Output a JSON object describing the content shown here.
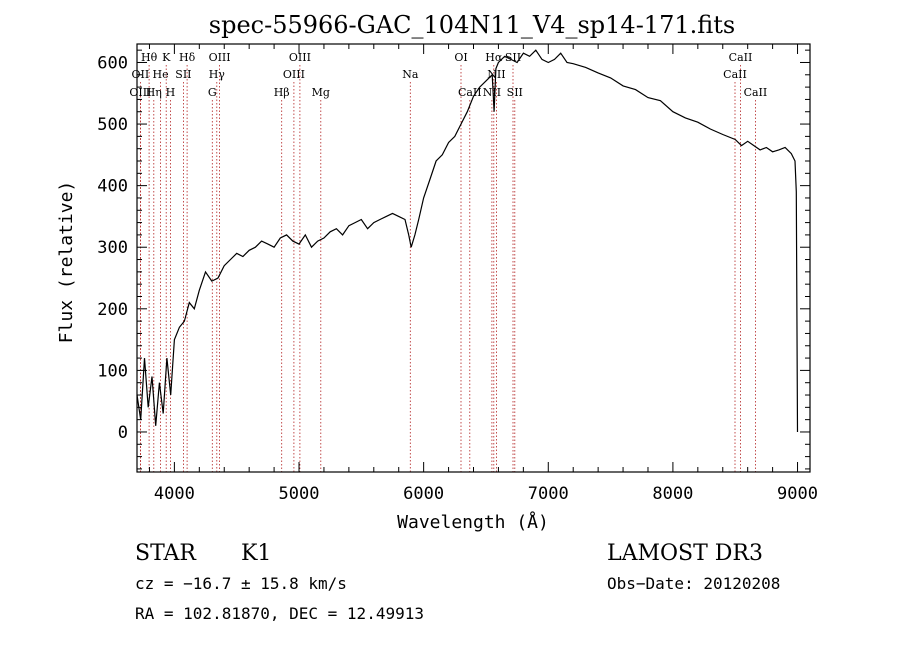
{
  "chart_data": {
    "type": "line",
    "title": "spec-55966-GAC_104N11_V4_sp14-171.fits",
    "xlabel": "Wavelength (Å)",
    "ylabel": "Flux (relative)",
    "xlim": [
      3700,
      9100
    ],
    "ylim": [
      -65,
      630
    ],
    "xticks": [
      4000,
      5000,
      6000,
      7000,
      8000,
      9000
    ],
    "yticks": [
      0,
      100,
      200,
      300,
      400,
      500,
      600
    ],
    "series": [
      {
        "name": "flux",
        "x": [
          3700,
          3730,
          3760,
          3790,
          3820,
          3850,
          3880,
          3910,
          3940,
          3970,
          4000,
          4040,
          4080,
          4120,
          4160,
          4200,
          4250,
          4300,
          4350,
          4400,
          4450,
          4500,
          4550,
          4600,
          4650,
          4700,
          4750,
          4800,
          4850,
          4900,
          4950,
          5000,
          5050,
          5100,
          5150,
          5200,
          5250,
          5300,
          5350,
          5400,
          5450,
          5500,
          5550,
          5600,
          5650,
          5700,
          5750,
          5800,
          5850,
          5880,
          5900,
          5930,
          5960,
          6000,
          6050,
          6100,
          6150,
          6200,
          6250,
          6300,
          6350,
          6400,
          6450,
          6500,
          6550,
          6565,
          6580,
          6600,
          6650,
          6700,
          6750,
          6800,
          6850,
          6900,
          6950,
          7000,
          7050,
          7100,
          7150,
          7200,
          7300,
          7400,
          7500,
          7600,
          7700,
          7800,
          7900,
          8000,
          8100,
          8200,
          8300,
          8400,
          8500,
          8550,
          8600,
          8650,
          8700,
          8750,
          8800,
          8850,
          8900,
          8950,
          8980,
          8990,
          9000
        ],
        "y": [
          60,
          20,
          120,
          40,
          90,
          10,
          80,
          30,
          120,
          60,
          150,
          170,
          180,
          210,
          200,
          230,
          260,
          245,
          250,
          270,
          280,
          290,
          285,
          295,
          300,
          310,
          305,
          300,
          315,
          320,
          310,
          305,
          320,
          300,
          310,
          315,
          325,
          330,
          320,
          335,
          340,
          345,
          330,
          340,
          345,
          350,
          355,
          350,
          345,
          320,
          300,
          320,
          345,
          380,
          410,
          440,
          450,
          470,
          480,
          500,
          520,
          545,
          560,
          570,
          580,
          520,
          590,
          600,
          610,
          605,
          600,
          615,
          610,
          620,
          605,
          600,
          605,
          615,
          600,
          598,
          592,
          583,
          575,
          562,
          556,
          543,
          538,
          520,
          510,
          503,
          492,
          483,
          475,
          465,
          472,
          465,
          458,
          462,
          455,
          458,
          462,
          452,
          440,
          390,
          0
        ]
      }
    ],
    "emission_lines": [
      {
        "label": "Hθ",
        "wavelength": 3797,
        "row": 0
      },
      {
        "label": "K",
        "wavelength": 3934,
        "row": 0
      },
      {
        "label": "Hδ",
        "wavelength": 4102,
        "row": 0
      },
      {
        "label": "OIII",
        "wavelength": 4363,
        "row": 0
      },
      {
        "label": "OIII",
        "wavelength": 5007,
        "row": 0
      },
      {
        "label": "OI",
        "wavelength": 6300,
        "row": 0
      },
      {
        "label": "Hα",
        "wavelength": 6563,
        "row": 0
      },
      {
        "label": "SII",
        "wavelength": 6717,
        "row": 0
      },
      {
        "label": "CaII",
        "wavelength": 8542,
        "row": 0
      },
      {
        "label": "OII",
        "wavelength": 3727,
        "row": 1
      },
      {
        "label": "He",
        "wavelength": 3889,
        "row": 1
      },
      {
        "label": "SII",
        "wavelength": 4072,
        "row": 1
      },
      {
        "label": "Hγ",
        "wavelength": 4340,
        "row": 1
      },
      {
        "label": "OIII",
        "wavelength": 4959,
        "row": 1
      },
      {
        "label": "Na",
        "wavelength": 5893,
        "row": 1
      },
      {
        "label": "NII",
        "wavelength": 6584,
        "row": 1
      },
      {
        "label": "CaII",
        "wavelength": 8498,
        "row": 1
      },
      {
        "label": "OIII",
        "wavelength": 3727,
        "row": 2
      },
      {
        "label": "Hη",
        "wavelength": 3835,
        "row": 2
      },
      {
        "label": "H",
        "wavelength": 3968,
        "row": 2
      },
      {
        "label": "G",
        "wavelength": 4304,
        "row": 2
      },
      {
        "label": "Hβ",
        "wavelength": 4861,
        "row": 2
      },
      {
        "label": "Mg",
        "wavelength": 5175,
        "row": 2
      },
      {
        "label": "CaII",
        "wavelength": 6370,
        "row": 2
      },
      {
        "label": "NII",
        "wavelength": 6548,
        "row": 2
      },
      {
        "label": "SII",
        "wavelength": 6731,
        "row": 2
      },
      {
        "label": "CaII",
        "wavelength": 8662,
        "row": 2
      }
    ],
    "grid": false
  },
  "info": {
    "class": "STAR",
    "subclass": "K1",
    "survey": "LAMOST DR3",
    "cz": "cz = −16.7 ± 15.8 km/s",
    "obs_date": "Obs−Date: 20120208",
    "coords": "RA = 102.81870, DEC =  12.49913"
  },
  "colors": {
    "axis": "#000000",
    "spectrum": "#000000",
    "line_marker": "#b22222",
    "background": "#ffffff"
  }
}
